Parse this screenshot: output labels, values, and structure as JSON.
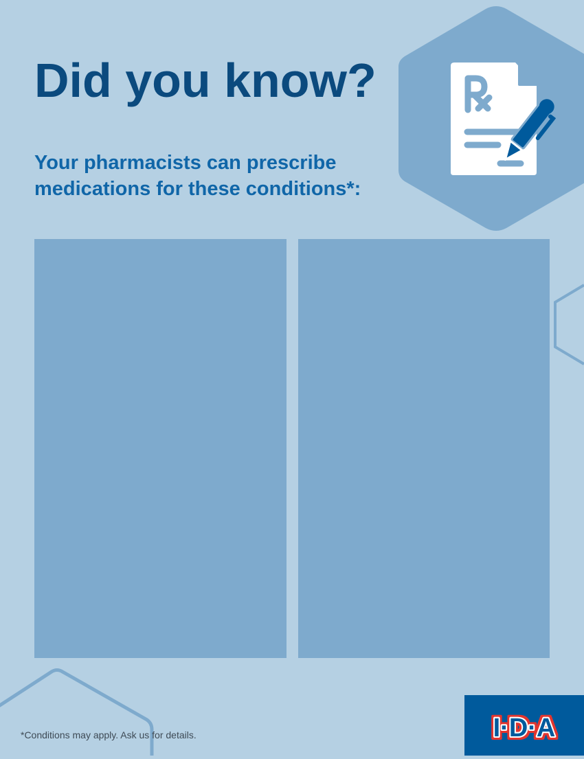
{
  "header": {
    "title": "Did you know?",
    "subtitle": "Your pharmacists can prescribe medications for these conditions*:"
  },
  "icon": {
    "name": "prescription-document-pen-icon"
  },
  "panels": [
    {
      "name": "left-conditions-panel"
    },
    {
      "name": "right-conditions-panel"
    }
  ],
  "footer": {
    "footnote": "*Conditions may apply. Ask us for details.",
    "logo_text": "I·D·A"
  },
  "colors": {
    "background": "#b5d0e3",
    "panel": "#7eaacd",
    "title": "#0b4a7e",
    "subtitle": "#1066a8",
    "logo_bg": "#005a9c",
    "logo_red": "#e3342f"
  }
}
